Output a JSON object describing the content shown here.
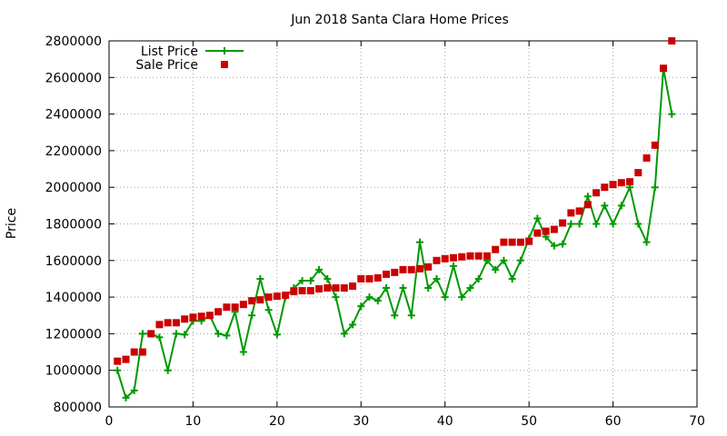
{
  "chart_data": {
    "type": "line",
    "title": "Jun 2018 Santa Clara Home Prices",
    "xlabel": "",
    "ylabel": "Price",
    "xlim": [
      0,
      70
    ],
    "ylim": [
      800000,
      2800000
    ],
    "xticks": [
      0,
      10,
      20,
      30,
      40,
      50,
      60,
      70
    ],
    "yticks": [
      800000,
      1000000,
      1200000,
      1400000,
      1600000,
      1800000,
      2000000,
      2200000,
      2400000,
      2600000,
      2800000
    ],
    "grid": true,
    "legend_position": "top-left",
    "series": [
      {
        "name": "List Price",
        "style": "linespoints",
        "color": "#009900",
        "marker": "plus",
        "x": [
          1,
          2,
          3,
          4,
          5,
          6,
          7,
          8,
          9,
          10,
          11,
          12,
          13,
          14,
          15,
          16,
          17,
          18,
          19,
          20,
          21,
          22,
          23,
          24,
          25,
          26,
          27,
          28,
          29,
          30,
          31,
          32,
          33,
          34,
          35,
          36,
          37,
          38,
          39,
          40,
          41,
          42,
          43,
          44,
          45,
          46,
          47,
          48,
          49,
          50,
          51,
          52,
          53,
          54,
          55,
          56,
          57,
          58,
          59,
          60,
          61,
          62,
          63,
          64,
          65,
          66,
          67
        ],
        "y": [
          1000000,
          850000,
          890000,
          1200000,
          1200000,
          1180000,
          1000000,
          1200000,
          1195000,
          1270000,
          1270000,
          1300000,
          1200000,
          1190000,
          1320000,
          1100000,
          1300000,
          1500000,
          1330000,
          1195000,
          1400000,
          1450000,
          1490000,
          1490000,
          1550000,
          1500000,
          1400000,
          1200000,
          1250000,
          1350000,
          1400000,
          1380000,
          1450000,
          1300000,
          1450000,
          1300000,
          1700000,
          1450000,
          1500000,
          1400000,
          1570000,
          1400000,
          1450000,
          1500000,
          1600000,
          1550000,
          1600000,
          1500000,
          1600000,
          1720000,
          1830000,
          1730000,
          1680000,
          1690000,
          1800000,
          1800000,
          1950000,
          1800000,
          1900000,
          1800000,
          1900000,
          2000000,
          1800000,
          1700000,
          2000000,
          2650000,
          2400000
        ]
      },
      {
        "name": "Sale Price",
        "style": "points",
        "color": "#cc0000",
        "marker": "square",
        "x": [
          1,
          2,
          3,
          4,
          5,
          6,
          7,
          8,
          9,
          10,
          11,
          12,
          13,
          14,
          15,
          16,
          17,
          18,
          19,
          20,
          21,
          22,
          23,
          24,
          25,
          26,
          27,
          28,
          29,
          30,
          31,
          32,
          33,
          34,
          35,
          36,
          37,
          38,
          39,
          40,
          41,
          42,
          43,
          44,
          45,
          46,
          47,
          48,
          49,
          50,
          51,
          52,
          53,
          54,
          55,
          56,
          57,
          58,
          59,
          60,
          61,
          62,
          63,
          64,
          65,
          66,
          67
        ],
        "y": [
          1050000,
          1060000,
          1100000,
          1100000,
          1200000,
          1250000,
          1260000,
          1260000,
          1280000,
          1290000,
          1295000,
          1300000,
          1320000,
          1345000,
          1345000,
          1360000,
          1380000,
          1385000,
          1400000,
          1405000,
          1410000,
          1430000,
          1435000,
          1435000,
          1445000,
          1450000,
          1450000,
          1450000,
          1460000,
          1500000,
          1500000,
          1505000,
          1525000,
          1535000,
          1550000,
          1550000,
          1555000,
          1565000,
          1600000,
          1610000,
          1615000,
          1620000,
          1625000,
          1625000,
          1625000,
          1660000,
          1700000,
          1700000,
          1700000,
          1705000,
          1750000,
          1760000,
          1770000,
          1805000,
          1860000,
          1870000,
          1905000,
          1970000,
          2000000,
          2015000,
          2025000,
          2030000,
          2080000,
          2160000,
          2230000,
          2650000,
          2800000
        ]
      }
    ]
  }
}
